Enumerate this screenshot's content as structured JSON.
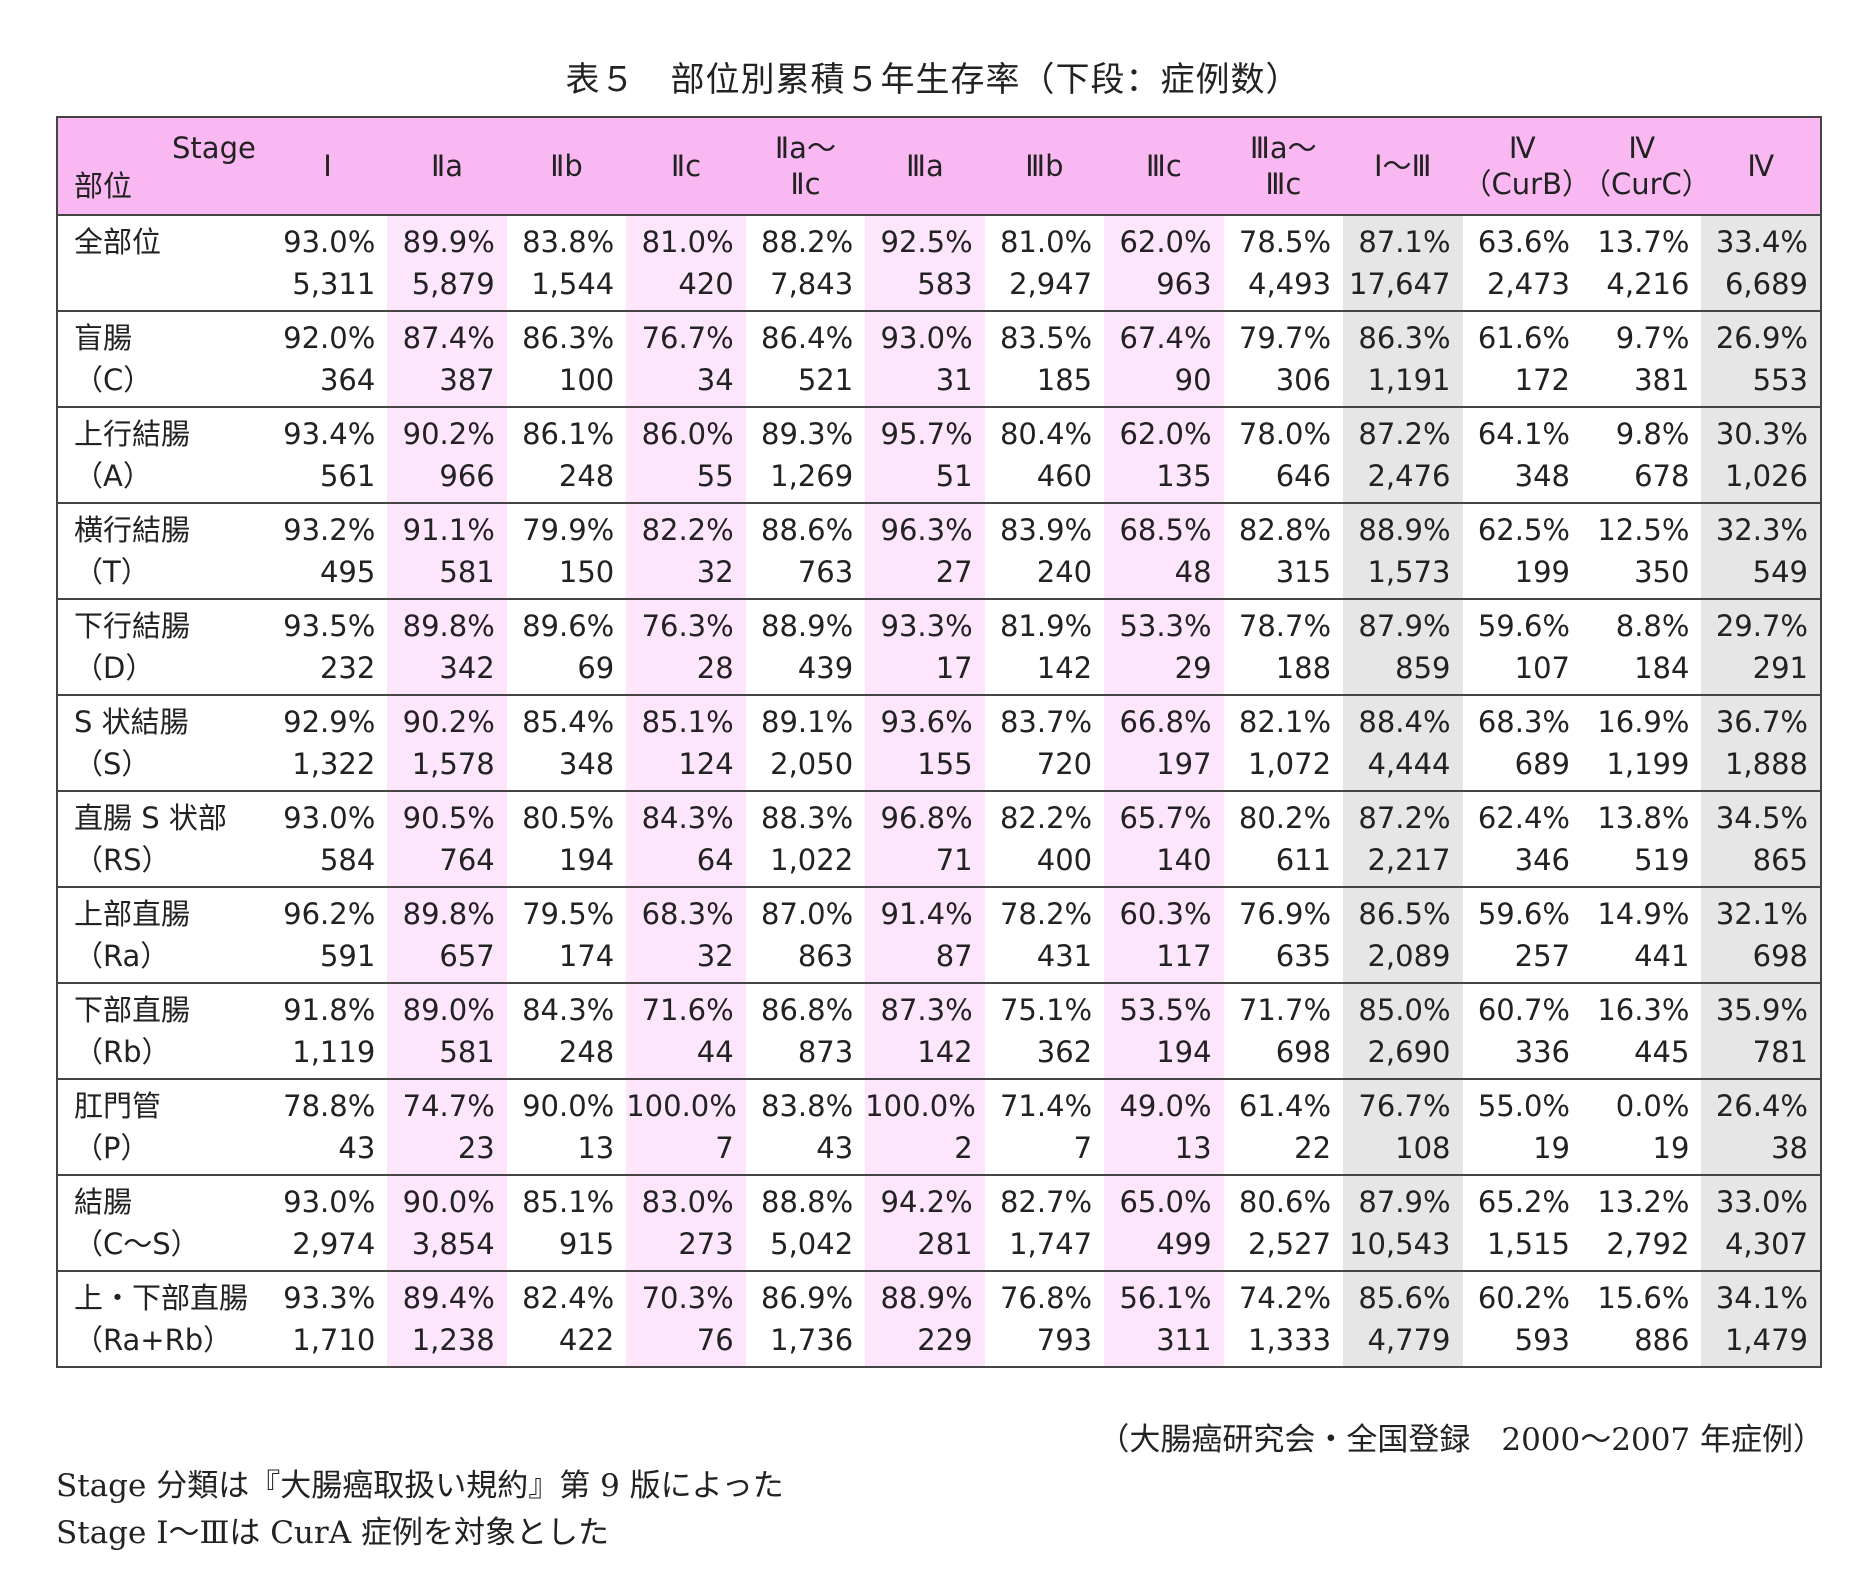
{
  "title": "表５　部位別累積５年生存率（下段：症例数）",
  "header": {
    "stage_label": "Stage",
    "site_label": "部位",
    "stages": [
      {
        "l1": "Ⅰ",
        "l2": ""
      },
      {
        "l1": "Ⅱa",
        "l2": ""
      },
      {
        "l1": "Ⅱb",
        "l2": ""
      },
      {
        "l1": "Ⅱc",
        "l2": ""
      },
      {
        "l1": "Ⅱa～",
        "l2": "Ⅱc"
      },
      {
        "l1": "Ⅲa",
        "l2": ""
      },
      {
        "l1": "Ⅲb",
        "l2": ""
      },
      {
        "l1": "Ⅲc",
        "l2": ""
      },
      {
        "l1": "Ⅲa～",
        "l2": "Ⅲc"
      },
      {
        "l1": "Ⅰ～Ⅲ",
        "l2": ""
      },
      {
        "l1": "Ⅳ",
        "l2": "（CurB）"
      },
      {
        "l1": "Ⅳ",
        "l2": "（CurC）"
      },
      {
        "l1": "Ⅳ",
        "l2": ""
      }
    ]
  },
  "rows": [
    {
      "site": "全部位",
      "code": "",
      "rates": [
        "93.0%",
        "89.9%",
        "83.8%",
        "81.0%",
        "88.2%",
        "92.5%",
        "81.0%",
        "62.0%",
        "78.5%",
        "87.1%",
        "63.6%",
        "13.7%",
        "33.4%"
      ],
      "counts": [
        "5,311",
        "5,879",
        "1,544",
        "420",
        "7,843",
        "583",
        "2,947",
        "963",
        "4,493",
        "17,647",
        "2,473",
        "4,216",
        "6,689"
      ]
    },
    {
      "site": "盲腸",
      "code": "（C）",
      "rates": [
        "92.0%",
        "87.4%",
        "86.3%",
        "76.7%",
        "86.4%",
        "93.0%",
        "83.5%",
        "67.4%",
        "79.7%",
        "86.3%",
        "61.6%",
        "9.7%",
        "26.9%"
      ],
      "counts": [
        "364",
        "387",
        "100",
        "34",
        "521",
        "31",
        "185",
        "90",
        "306",
        "1,191",
        "172",
        "381",
        "553"
      ]
    },
    {
      "site": "上行結腸",
      "code": "（A）",
      "rates": [
        "93.4%",
        "90.2%",
        "86.1%",
        "86.0%",
        "89.3%",
        "95.7%",
        "80.4%",
        "62.0%",
        "78.0%",
        "87.2%",
        "64.1%",
        "9.8%",
        "30.3%"
      ],
      "counts": [
        "561",
        "966",
        "248",
        "55",
        "1,269",
        "51",
        "460",
        "135",
        "646",
        "2,476",
        "348",
        "678",
        "1,026"
      ]
    },
    {
      "site": "横行結腸",
      "code": "（T）",
      "rates": [
        "93.2%",
        "91.1%",
        "79.9%",
        "82.2%",
        "88.6%",
        "96.3%",
        "83.9%",
        "68.5%",
        "82.8%",
        "88.9%",
        "62.5%",
        "12.5%",
        "32.3%"
      ],
      "counts": [
        "495",
        "581",
        "150",
        "32",
        "763",
        "27",
        "240",
        "48",
        "315",
        "1,573",
        "199",
        "350",
        "549"
      ]
    },
    {
      "site": "下行結腸",
      "code": "（D）",
      "rates": [
        "93.5%",
        "89.8%",
        "89.6%",
        "76.3%",
        "88.9%",
        "93.3%",
        "81.9%",
        "53.3%",
        "78.7%",
        "87.9%",
        "59.6%",
        "8.8%",
        "29.7%"
      ],
      "counts": [
        "232",
        "342",
        "69",
        "28",
        "439",
        "17",
        "142",
        "29",
        "188",
        "859",
        "107",
        "184",
        "291"
      ]
    },
    {
      "site": "S 状結腸",
      "code": "（S）",
      "rates": [
        "92.9%",
        "90.2%",
        "85.4%",
        "85.1%",
        "89.1%",
        "93.6%",
        "83.7%",
        "66.8%",
        "82.1%",
        "88.4%",
        "68.3%",
        "16.9%",
        "36.7%"
      ],
      "counts": [
        "1,322",
        "1,578",
        "348",
        "124",
        "2,050",
        "155",
        "720",
        "197",
        "1,072",
        "4,444",
        "689",
        "1,199",
        "1,888"
      ]
    },
    {
      "site": "直腸 S 状部",
      "code": "（RS）",
      "rates": [
        "93.0%",
        "90.5%",
        "80.5%",
        "84.3%",
        "88.3%",
        "96.8%",
        "82.2%",
        "65.7%",
        "80.2%",
        "87.2%",
        "62.4%",
        "13.8%",
        "34.5%"
      ],
      "counts": [
        "584",
        "764",
        "194",
        "64",
        "1,022",
        "71",
        "400",
        "140",
        "611",
        "2,217",
        "346",
        "519",
        "865"
      ]
    },
    {
      "site": "上部直腸",
      "code": "（Ra）",
      "rates": [
        "96.2%",
        "89.8%",
        "79.5%",
        "68.3%",
        "87.0%",
        "91.4%",
        "78.2%",
        "60.3%",
        "76.9%",
        "86.5%",
        "59.6%",
        "14.9%",
        "32.1%"
      ],
      "counts": [
        "591",
        "657",
        "174",
        "32",
        "863",
        "87",
        "431",
        "117",
        "635",
        "2,089",
        "257",
        "441",
        "698"
      ]
    },
    {
      "site": "下部直腸",
      "code": "（Rb）",
      "rates": [
        "91.8%",
        "89.0%",
        "84.3%",
        "71.6%",
        "86.8%",
        "87.3%",
        "75.1%",
        "53.5%",
        "71.7%",
        "85.0%",
        "60.7%",
        "16.3%",
        "35.9%"
      ],
      "counts": [
        "1,119",
        "581",
        "248",
        "44",
        "873",
        "142",
        "362",
        "194",
        "698",
        "2,690",
        "336",
        "445",
        "781"
      ]
    },
    {
      "site": "肛門管",
      "code": "（P）",
      "rates": [
        "78.8%",
        "74.7%",
        "90.0%",
        "100.0%",
        "83.8%",
        "100.0%",
        "71.4%",
        "49.0%",
        "61.4%",
        "76.7%",
        "55.0%",
        "0.0%",
        "26.4%"
      ],
      "counts": [
        "43",
        "23",
        "13",
        "7",
        "43",
        "2",
        "7",
        "13",
        "22",
        "108",
        "19",
        "19",
        "38"
      ]
    },
    {
      "site": "結腸",
      "code": "（C～S）",
      "rates": [
        "93.0%",
        "90.0%",
        "85.1%",
        "83.0%",
        "88.8%",
        "94.2%",
        "82.7%",
        "65.0%",
        "80.6%",
        "87.9%",
        "65.2%",
        "13.2%",
        "33.0%"
      ],
      "counts": [
        "2,974",
        "3,854",
        "915",
        "273",
        "5,042",
        "281",
        "1,747",
        "499",
        "2,527",
        "10,543",
        "1,515",
        "2,792",
        "4,307"
      ]
    },
    {
      "site": "上・下部直腸",
      "code": "（Ra+Rb）",
      "rates": [
        "93.3%",
        "89.4%",
        "82.4%",
        "70.3%",
        "86.9%",
        "88.9%",
        "76.8%",
        "56.1%",
        "74.2%",
        "85.6%",
        "60.2%",
        "15.6%",
        "34.1%"
      ],
      "counts": [
        "1,710",
        "1,238",
        "422",
        "76",
        "1,736",
        "229",
        "793",
        "311",
        "1,333",
        "4,779",
        "593",
        "886",
        "1,479"
      ]
    }
  ],
  "source": "（大腸癌研究会・全国登録　2000～2007 年症例）",
  "notes": [
    "Stage 分類は『大腸癌取扱い規約』第 9 版によった",
    "Stage Ⅰ～Ⅲは CurA 症例を対象とした"
  ],
  "colors": {
    "header_bg": "#f9b8f2",
    "pink_col_bg": "#fde6fb",
    "grey_col_bg": "#e6e6e6",
    "border": "#444444"
  }
}
